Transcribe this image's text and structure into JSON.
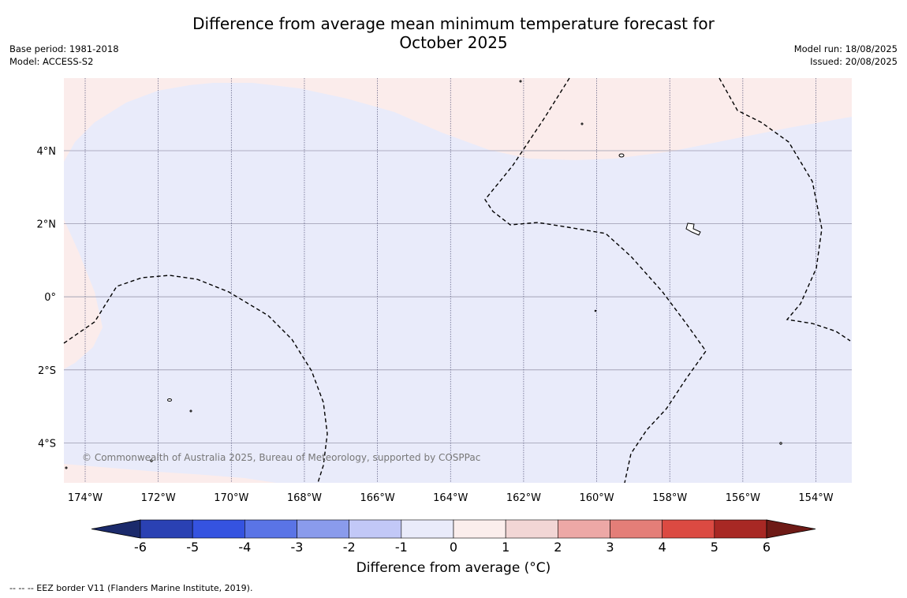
{
  "title_line1": "Difference from average mean minimum temperature forecast for",
  "title_line2": "October 2025",
  "base_period": "Base period: 1981-2018",
  "model": "Model: ACCESS-S2",
  "model_run": "Model run: 18/08/2025",
  "issued": "Issued: 20/08/2025",
  "copyright": "© Commonwealth of Australia 2025, Bureau of Meteorology, supported by COSPPac",
  "lon_labels": [
    "174°W",
    "172°W",
    "170°W",
    "168°W",
    "166°W",
    "164°W",
    "162°W",
    "160°W",
    "158°W",
    "156°W",
    "154°W"
  ],
  "lat_labels": [
    "4°N",
    "2°N",
    "0°",
    "2°S",
    "4°S"
  ],
  "colorbar": {
    "ticks": [
      "-6",
      "-5",
      "-4",
      "-3",
      "-2",
      "-1",
      "0",
      "1",
      "2",
      "3",
      "4",
      "5",
      "6"
    ],
    "colors": [
      "#1b2a6b",
      "#2a41b3",
      "#3553e0",
      "#5a74e6",
      "#8a9bec",
      "#c2c8f7",
      "#e9ebfa",
      "#fbeeec",
      "#f2d6d5",
      "#eda8a6",
      "#e47e78",
      "#db4a42",
      "#a82824",
      "#6e1a16"
    ],
    "label": "Difference from average (°C)"
  },
  "footnote": "--  --  -- EEZ border V11 (Flanders Marine Institute, 2019).",
  "map_colors": {
    "below": "#e9ebfa",
    "above": "#fbeceb"
  }
}
